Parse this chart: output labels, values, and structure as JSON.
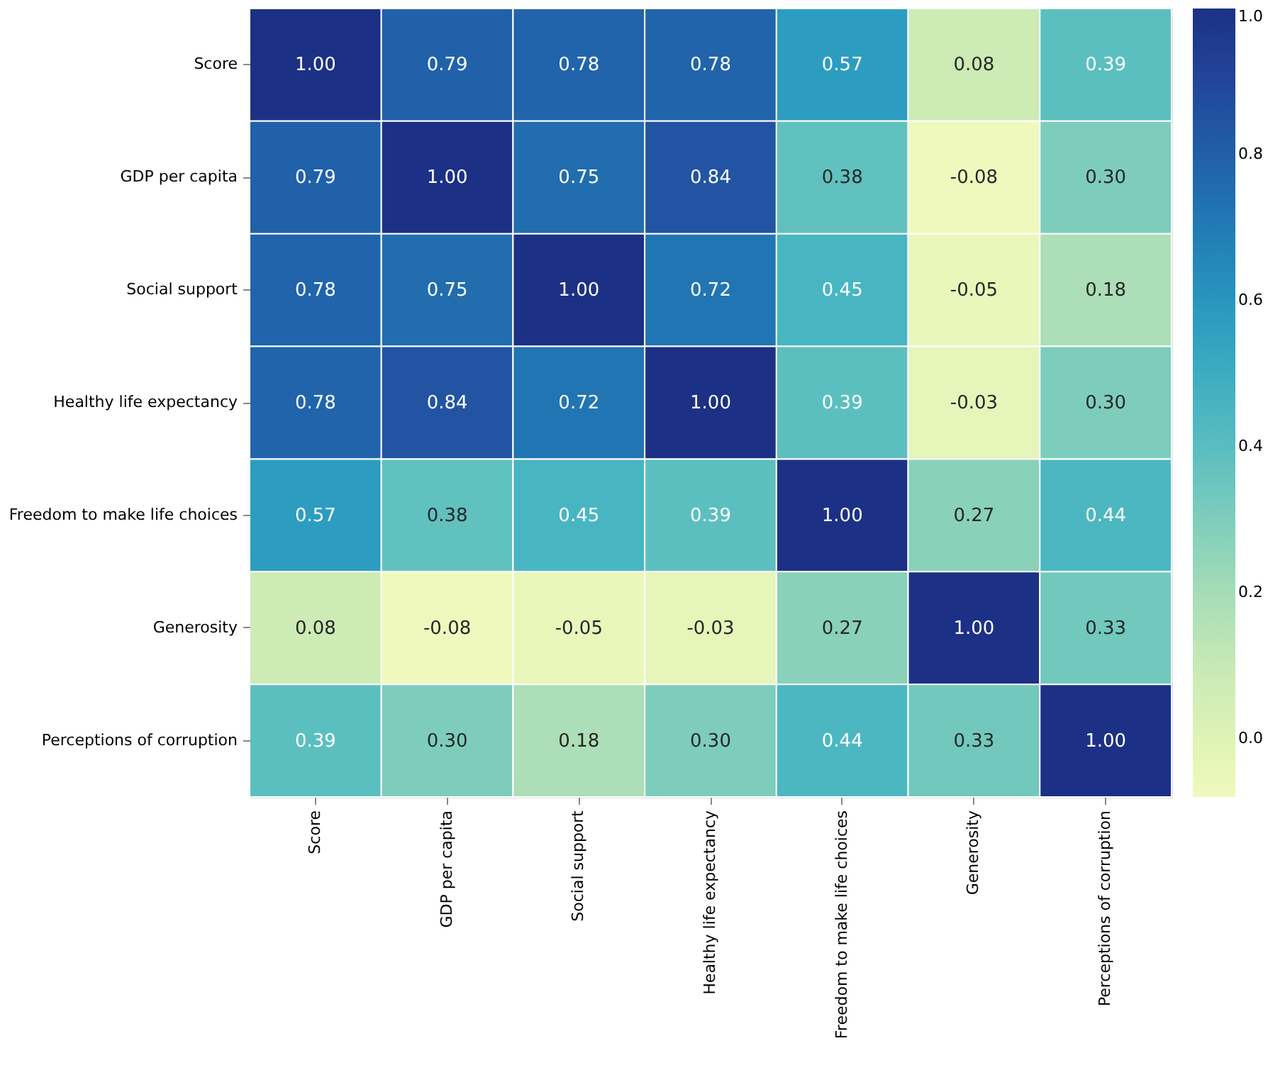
{
  "chart_data": {
    "type": "heatmap",
    "categories": [
      "Score",
      "GDP per capita",
      "Social support",
      "Healthy life expectancy",
      "Freedom to make life choices",
      "Generosity",
      "Perceptions of corruption"
    ],
    "y_categories": [
      "Score",
      "GDP per capita",
      "Social support",
      "Healthy life expectancy",
      "Freedom to make life choices",
      "Generosity",
      "Perceptions of corruption"
    ],
    "cells": [
      [
        1.0,
        0.79,
        0.78,
        0.78,
        0.57,
        0.08,
        0.39
      ],
      [
        0.79,
        1.0,
        0.75,
        0.84,
        0.38,
        -0.08,
        0.3
      ],
      [
        0.78,
        0.75,
        1.0,
        0.72,
        0.45,
        -0.05,
        0.18
      ],
      [
        0.78,
        0.84,
        0.72,
        1.0,
        0.39,
        -0.03,
        0.3
      ],
      [
        0.57,
        0.38,
        0.45,
        0.39,
        1.0,
        0.27,
        0.44
      ],
      [
        0.08,
        -0.08,
        -0.05,
        -0.03,
        0.27,
        1.0,
        0.33
      ],
      [
        0.39,
        0.3,
        0.18,
        0.3,
        0.44,
        0.33,
        1.0
      ]
    ],
    "clim": [
      -0.08,
      1.0
    ],
    "cticks": [
      {
        "value": 0,
        "label": "0.0"
      },
      {
        "value": 0.2,
        "label": "0.2"
      },
      {
        "value": 0.4,
        "label": "0.4"
      },
      {
        "value": 0.6,
        "label": "0.6"
      },
      {
        "value": 0.8,
        "label": "0.8"
      },
      {
        "value": 1.0,
        "label": "1.0"
      }
    ],
    "cell_labels": [
      [
        "1.00",
        "0.79",
        "0.78",
        "0.78",
        "0.57",
        "0.08",
        "0.39"
      ],
      [
        "0.79",
        "1.00",
        "0.75",
        "0.84",
        "0.38",
        "-0.08",
        "0.30"
      ],
      [
        "0.78",
        "0.75",
        "1.00",
        "0.72",
        "0.45",
        "-0.05",
        "0.18"
      ],
      [
        "0.78",
        "0.84",
        "0.72",
        "1.00",
        "0.39",
        "-0.03",
        "0.30"
      ],
      [
        "0.57",
        "0.38",
        "0.45",
        "0.39",
        "1.00",
        "0.27",
        "0.44"
      ],
      [
        "0.08",
        "-0.08",
        "-0.05",
        "-0.03",
        "0.27",
        "1.00",
        "0.33"
      ],
      [
        "0.39",
        "0.30",
        "0.18",
        "0.30",
        "0.44",
        "0.33",
        "1.00"
      ]
    ]
  }
}
